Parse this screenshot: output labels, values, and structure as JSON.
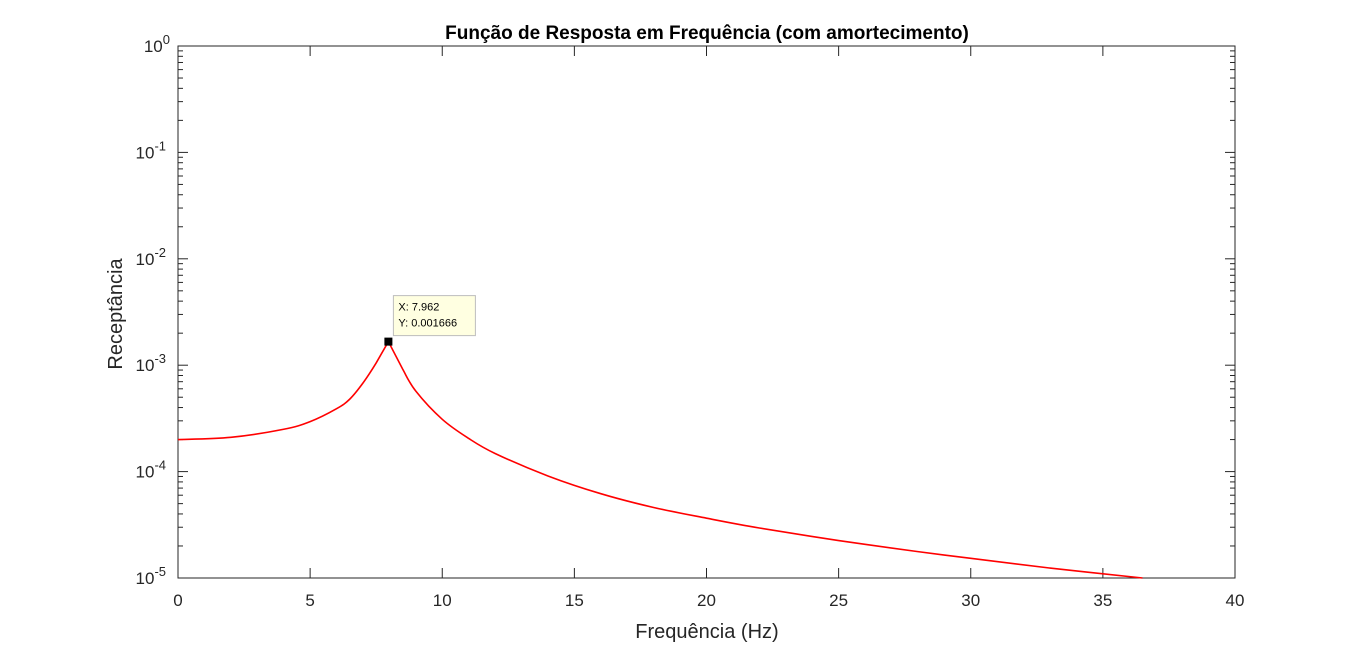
{
  "chart_data": {
    "type": "line",
    "title": "Função de Resposta em Frequência (com amortecimento)",
    "xlabel": "Frequência (Hz)",
    "ylabel": "Receptância",
    "xlim": [
      0,
      40
    ],
    "ylim": [
      1e-05,
      1
    ],
    "yscale": "log",
    "grid": false,
    "box": true,
    "xticks": [
      0,
      5,
      10,
      15,
      20,
      25,
      30,
      35,
      40
    ],
    "yticks": [
      {
        "value": 1e-05,
        "base": "10",
        "exp": "-5"
      },
      {
        "value": 0.0001,
        "base": "10",
        "exp": "-4"
      },
      {
        "value": 0.001,
        "base": "10",
        "exp": "-3"
      },
      {
        "value": 0.01,
        "base": "10",
        "exp": "-2"
      },
      {
        "value": 0.1,
        "base": "10",
        "exp": "-1"
      },
      {
        "value": 1,
        "base": "10",
        "exp": "0"
      }
    ],
    "series": [
      {
        "color": "#ff0000",
        "x": [
          0,
          2,
          4,
          5,
          6,
          6.5,
          7,
          7.5,
          7.962,
          8.5,
          9,
          10,
          11,
          12,
          14,
          16,
          18,
          20,
          22,
          25,
          28,
          30,
          33,
          36.5
        ],
        "y": [
          0.0002,
          0.00021,
          0.00025,
          0.000295,
          0.00039,
          0.00048,
          0.00068,
          0.00105,
          0.001666,
          0.00092,
          0.00057,
          0.00031,
          0.000205,
          0.000148,
          9.1e-05,
          6.2e-05,
          4.6e-05,
          3.65e-05,
          2.95e-05,
          2.25e-05,
          1.77e-05,
          1.53e-05,
          1.24e-05,
          1e-05
        ]
      }
    ],
    "datatip": {
      "x": 7.962,
      "y": 0.001666,
      "x_text": "X: 7.962",
      "y_text": "Y: 0.001666"
    }
  }
}
